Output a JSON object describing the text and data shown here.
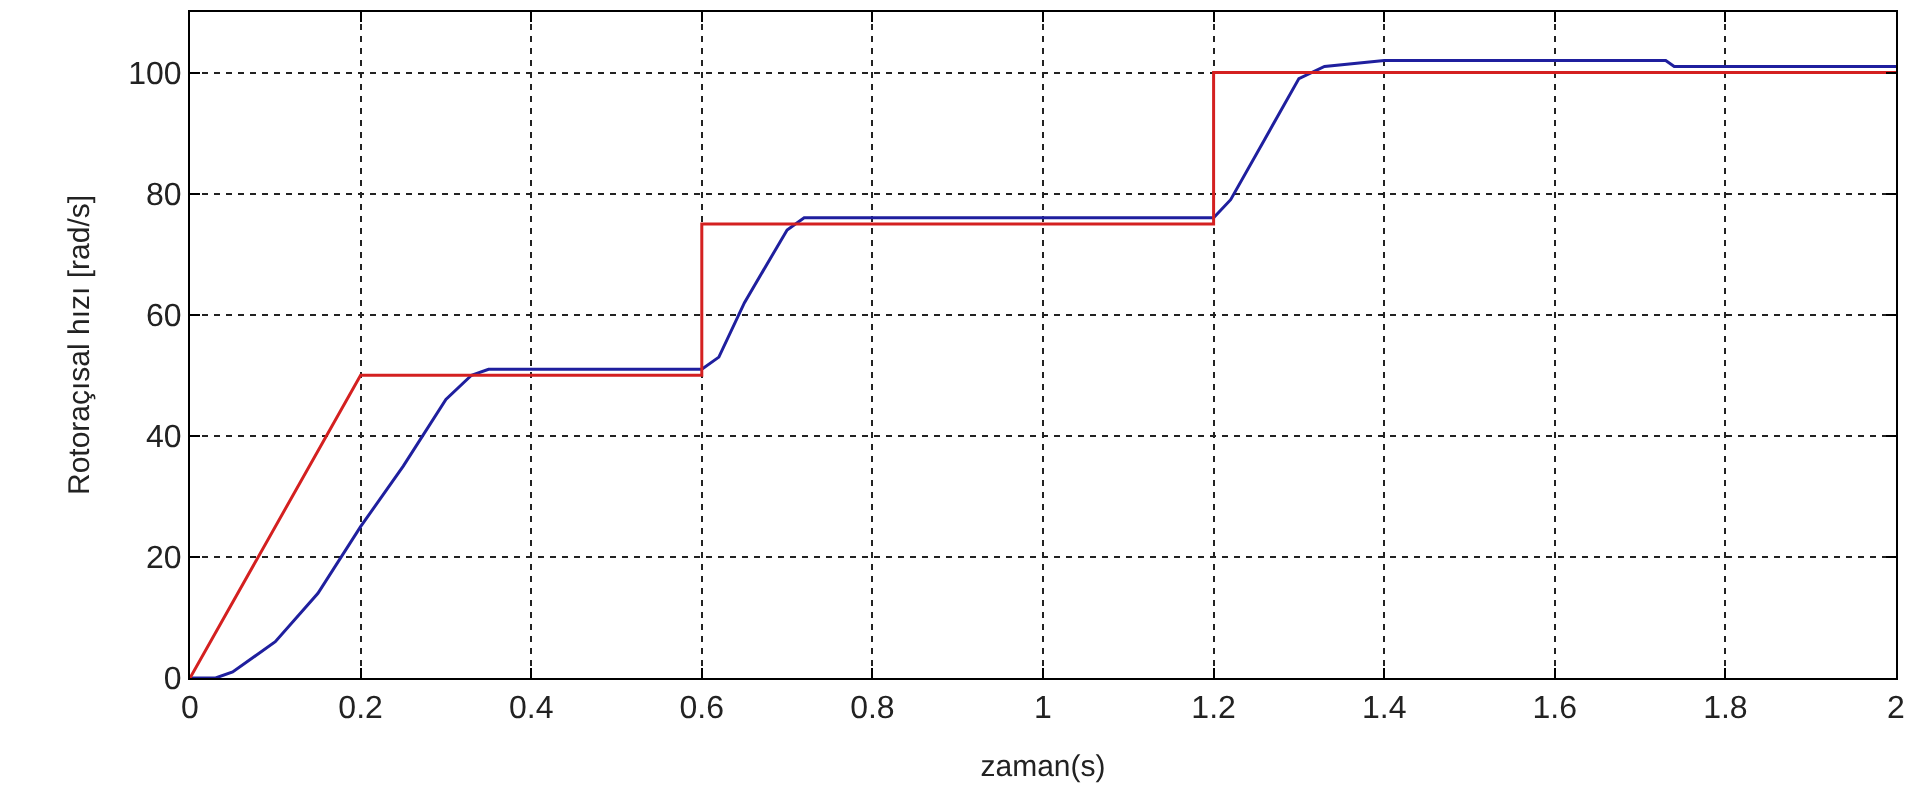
{
  "chart_data": {
    "type": "line",
    "xlabel": "zaman(s)",
    "ylabel": "Rotoraçısal hızı [rad/s]",
    "xlim": [
      0,
      2
    ],
    "xticks": [
      0,
      0.2,
      0.4,
      0.6,
      0.8,
      1,
      1.2,
      1.4,
      1.6,
      1.8,
      2
    ],
    "ylim": [
      0,
      110
    ],
    "yticks": [
      0,
      20,
      40,
      60,
      80,
      100
    ],
    "grid": true,
    "line_style": "solid",
    "series": [
      {
        "color": "#1f1f9e",
        "x": [
          0,
          0.03,
          0.05,
          0.1,
          0.15,
          0.2,
          0.25,
          0.3,
          0.33,
          0.35,
          0.6,
          0.62,
          0.65,
          0.7,
          0.72,
          1.2,
          1.22,
          1.26,
          1.3,
          1.33,
          1.4,
          1.73,
          1.74,
          2
        ],
        "values": [
          0,
          0,
          1,
          6,
          14,
          25,
          35,
          46,
          50,
          51,
          51,
          53,
          62,
          74,
          76,
          76,
          79,
          89,
          99,
          101,
          102,
          102,
          101,
          101
        ]
      },
      {
        "color": "#d42020",
        "x": [
          0,
          0.2,
          0.6,
          0.6,
          1.2,
          1.2,
          2
        ],
        "values": [
          0,
          50,
          50,
          75,
          75,
          100,
          100
        ]
      }
    ]
  }
}
